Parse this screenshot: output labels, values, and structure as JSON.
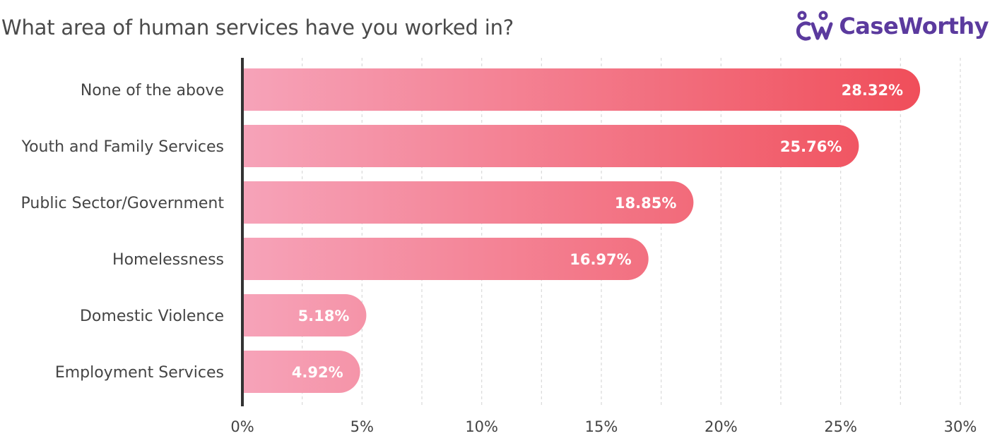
{
  "title": "What area of human services have you worked in?",
  "logo": {
    "text": "CaseWorthy",
    "icon": "caseworthy-logo-icon",
    "color": "#5b3a9e"
  },
  "colors": {
    "bar_start": "#f6a3b9",
    "bar_end": "#f04e5a",
    "axis": "#333333",
    "grid": "#d9d9d9"
  },
  "chart_data": {
    "type": "bar",
    "orientation": "horizontal",
    "title": "What area of human services have you worked in?",
    "categories": [
      "None of the above",
      "Youth and Family Services",
      "Public Sector/Government",
      "Homelessness",
      "Domestic Violence",
      "Employment Services"
    ],
    "values": [
      28.32,
      25.76,
      18.85,
      16.97,
      5.18,
      4.92
    ],
    "value_labels": [
      "28.32%",
      "25.76%",
      "18.85%",
      "16.97%",
      "5.18%",
      "4.92%"
    ],
    "xlim": [
      0,
      30
    ],
    "xticks": [
      0,
      5,
      10,
      15,
      20,
      25,
      30
    ],
    "xtick_labels": [
      "0%",
      "5%",
      "10%",
      "15%",
      "20%",
      "25%",
      "30%"
    ],
    "grid": true,
    "xlabel": "",
    "ylabel": ""
  }
}
